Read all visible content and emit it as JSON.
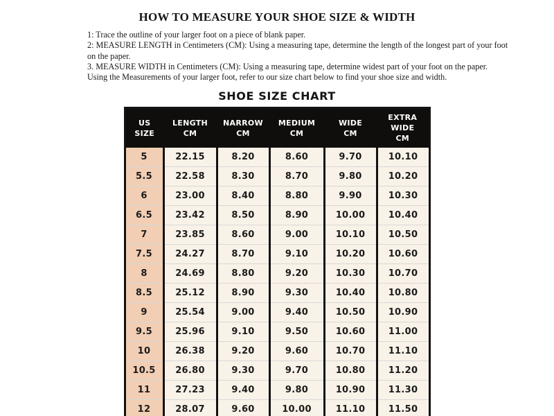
{
  "page": {
    "title": "HOW TO MEASURE YOUR SHOE SIZE & WIDTH",
    "instructions": [
      "1: Trace the outline of your larger foot on a piece of blank paper.",
      "2: MEASURE LENGTH in Centimeters (CM): Using a measuring tape, determine the length of the longest part of your foot\non the paper.",
      "3. MEASURE WIDTH in Centimeters (CM): Using a measuring tape, determine widest part of your foot on the paper.",
      "Using the Measurements of your larger foot, refer to our size chart below to find your shoe size and width."
    ],
    "chart_title": "SHOE SIZE CHART"
  },
  "table": {
    "columns": [
      "US\nSIZE",
      "LENGTH\nCM",
      "NARROW\nCM",
      "MEDIUM\nCM",
      "WIDE\nCM",
      "EXTRA WIDE\nCM"
    ],
    "rows": [
      [
        "5",
        "22.15",
        "8.20",
        "8.60",
        "9.70",
        "10.10"
      ],
      [
        "5.5",
        "22.58",
        "8.30",
        "8.70",
        "9.80",
        "10.20"
      ],
      [
        "6",
        "23.00",
        "8.40",
        "8.80",
        "9.90",
        "10.30"
      ],
      [
        "6.5",
        "23.42",
        "8.50",
        "8.90",
        "10.00",
        "10.40"
      ],
      [
        "7",
        "23.85",
        "8.60",
        "9.00",
        "10.10",
        "10.50"
      ],
      [
        "7.5",
        "24.27",
        "8.70",
        "9.10",
        "10.20",
        "10.60"
      ],
      [
        "8",
        "24.69",
        "8.80",
        "9.20",
        "10.30",
        "10.70"
      ],
      [
        "8.5",
        "25.12",
        "8.90",
        "9.30",
        "10.40",
        "10.80"
      ],
      [
        "9",
        "25.54",
        "9.00",
        "9.40",
        "10.50",
        "10.90"
      ],
      [
        "9.5",
        "25.96",
        "9.10",
        "9.50",
        "10.60",
        "11.00"
      ],
      [
        "10",
        "26.38",
        "9.20",
        "9.60",
        "10.70",
        "11.10"
      ],
      [
        "10.5",
        "26.80",
        "9.30",
        "9.70",
        "10.80",
        "11.20"
      ],
      [
        "11",
        "27.23",
        "9.40",
        "9.80",
        "10.90",
        "11.30"
      ],
      [
        "12",
        "28.07",
        "9.60",
        "10.00",
        "11.10",
        "11.50"
      ]
    ]
  },
  "colors": {
    "header_bg": "#0f0e0c",
    "size_col_bg": "#f1ceb4",
    "cell_bg": "#f9f2e8",
    "table_border": "#131313",
    "row_divider": "#d8d8d8",
    "text_color": "#1b1b1b"
  }
}
